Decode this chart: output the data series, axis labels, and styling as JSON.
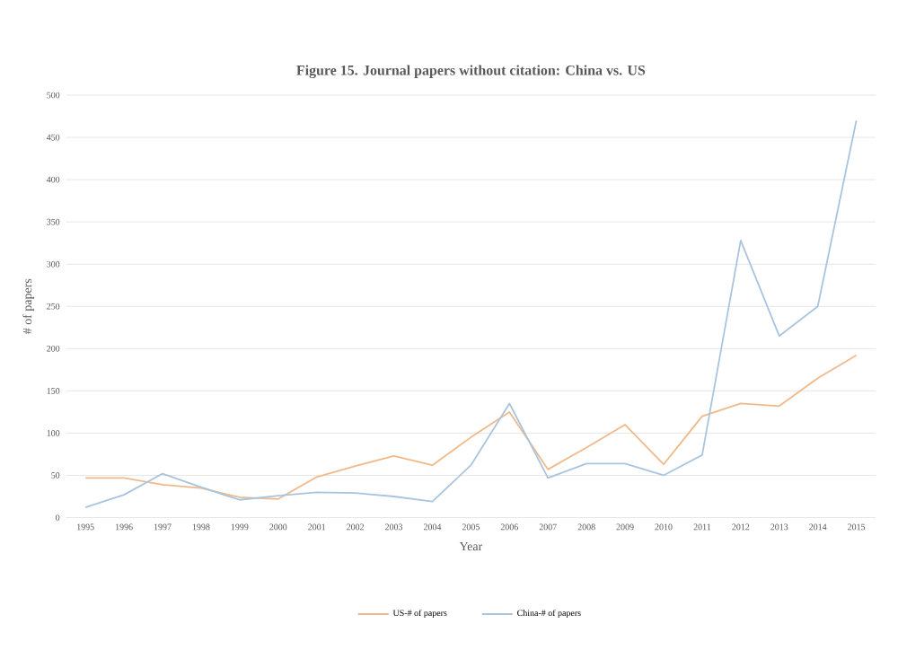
{
  "chart_data": {
    "type": "line",
    "title": "Figure 15. Journal papers without citation: China vs. US",
    "xlabel": "Year",
    "ylabel": "# of papers",
    "categories": [
      "1995",
      "1996",
      "1997",
      "1998",
      "1999",
      "2000",
      "2001",
      "2002",
      "2003",
      "2004",
      "2005",
      "2006",
      "2007",
      "2008",
      "2009",
      "2010",
      "2011",
      "2012",
      "2013",
      "2014",
      "2015"
    ],
    "series": [
      {
        "name": "US-# of papers",
        "color": "#f0b98a",
        "values": [
          47,
          47,
          39,
          35,
          24,
          22,
          48,
          61,
          73,
          62,
          95,
          125,
          57,
          83,
          110,
          63,
          120,
          135,
          132,
          165,
          192
        ]
      },
      {
        "name": "China-# of papers",
        "color": "#a9c4de",
        "values": [
          12,
          27,
          52,
          36,
          21,
          26,
          30,
          29,
          25,
          19,
          62,
          135,
          47,
          64,
          64,
          50,
          74,
          328,
          215,
          250,
          470
        ]
      }
    ],
    "ylim": [
      0,
      500
    ],
    "yticks": [
      0,
      50,
      100,
      150,
      200,
      250,
      300,
      350,
      400,
      450,
      500
    ],
    "grid": "y",
    "legend": "bottom",
    "marker": "none",
    "line_style": "solid"
  }
}
